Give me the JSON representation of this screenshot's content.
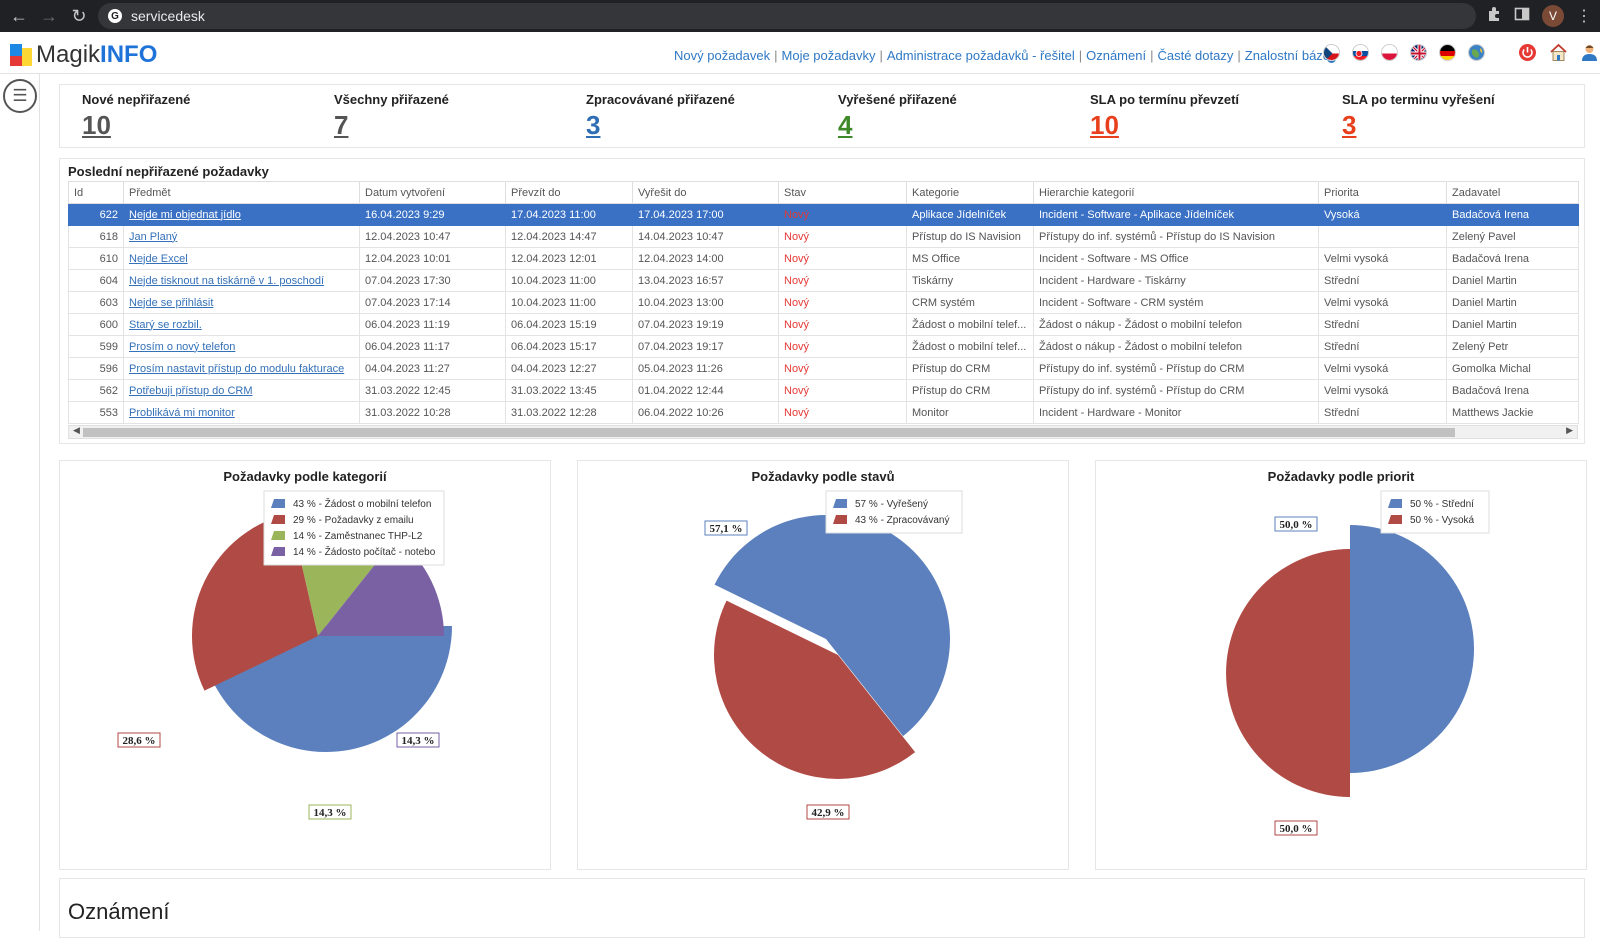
{
  "browser": {
    "url": "servicedesk",
    "profile_initial": "V"
  },
  "app": {
    "logo_prefix": "Magik",
    "logo_suffix": "INFO",
    "nav": [
      "Nový požadavek",
      "Moje požadavky",
      "Administrace požadavků - řešitel",
      "Oznámení",
      "Časté dotazy",
      "Znalostní báze"
    ],
    "languages": [
      "cs",
      "sk",
      "pl",
      "en",
      "de",
      "other"
    ],
    "active_language": "cs"
  },
  "kpis": [
    {
      "title": "Nové nepřiřazené",
      "value": "10",
      "color": "#555555"
    },
    {
      "title": "Všechny přiřazené",
      "value": "7",
      "color": "#555555"
    },
    {
      "title": "Zpracovávané přiřazené",
      "value": "3",
      "color": "#2f6db5"
    },
    {
      "title": "Vyřešené přiřazené",
      "value": "4",
      "color": "#3e8a2b"
    },
    {
      "title": "SLA po termínu převzetí",
      "value": "10",
      "color": "#e8401c"
    },
    {
      "title": "SLA po terminu vyřešení",
      "value": "3",
      "color": "#e8401c"
    }
  ],
  "requests_table": {
    "title": "Poslední nepřiřazené požadavky",
    "columns": [
      "Id",
      "Předmět",
      "Datum vytvoření",
      "Převzít do",
      "Vyřešit do",
      "Stav",
      "Kategorie",
      "Hierarchie kategorií",
      "Priorita",
      "Zadavatel"
    ],
    "rows": [
      [
        "622",
        "Nejde mi objednat jídlo",
        "16.04.2023 9:29",
        "17.04.2023 11:00",
        "17.04.2023 17:00",
        "Nový",
        "Aplikace Jídelníček",
        "Incident - Software - Aplikace Jídelníček",
        "Vysoká",
        "Badačová Irena"
      ],
      [
        "618",
        "Jan Planý",
        "12.04.2023 10:47",
        "12.04.2023 14:47",
        "14.04.2023 10:47",
        "Nový",
        "Přístup do IS Navision",
        "Přístupy do inf. systémů - Přístup do IS Navision",
        "",
        "Zelený Pavel"
      ],
      [
        "610",
        "Nejde Excel",
        "12.04.2023 10:01",
        "12.04.2023 12:01",
        "12.04.2023 14:00",
        "Nový",
        "MS Office",
        "Incident - Software - MS Office",
        "Velmi vysoká",
        "Badačová Irena"
      ],
      [
        "604",
        "Nejde tisknout na tiskárně v 1. poschodí",
        "07.04.2023 17:30",
        "10.04.2023 11:00",
        "13.04.2023 16:57",
        "Nový",
        "Tiskárny",
        "Incident - Hardware - Tiskárny",
        "Střední",
        "Daniel Martin"
      ],
      [
        "603",
        "Nejde se přihlásit",
        "07.04.2023 17:14",
        "10.04.2023 11:00",
        "10.04.2023 13:00",
        "Nový",
        "CRM systém",
        "Incident - Software - CRM systém",
        "Velmi vysoká",
        "Daniel Martin"
      ],
      [
        "600",
        "Starý se rozbil.",
        "06.04.2023 11:19",
        "06.04.2023 15:19",
        "07.04.2023 19:19",
        "Nový",
        "Žádost o mobilní telef...",
        "Žádost o nákup - Žádost o mobilní telefon",
        "Střední",
        "Daniel Martin"
      ],
      [
        "599",
        "Prosím o nový telefon",
        "06.04.2023 11:17",
        "06.04.2023 15:17",
        "07.04.2023 19:17",
        "Nový",
        "Žádost o mobilní telef...",
        "Žádost o nákup - Žádost o mobilní telefon",
        "Střední",
        "Zelený Petr"
      ],
      [
        "596",
        "Prosím nastavit přístup do modulu fakturace",
        "04.04.2023 11:27",
        "04.04.2023 12:27",
        "05.04.2023 11:26",
        "Nový",
        "Přístup do CRM",
        "Přístupy do inf. systémů - Přístup do CRM",
        "Velmi vysoká",
        "Gomolka Michal"
      ],
      [
        "562",
        "Potřebuji přístup do CRM",
        "31.03.2022 12:45",
        "31.03.2022 13:45",
        "01.04.2022 12:44",
        "Nový",
        "Přístup do CRM",
        "Přístupy do inf. systémů - Přístup do CRM",
        "Velmi vysoká",
        "Badačová Irena"
      ],
      [
        "553",
        "Problikává mi monitor",
        "31.03.2022 10:28",
        "31.03.2022 12:28",
        "06.04.2022 10:26",
        "Nový",
        "Monitor",
        "Incident - Hardware - Monitor",
        "Střední",
        "Matthews Jackie"
      ]
    ],
    "selected_row": 0
  },
  "chart_data": [
    {
      "type": "pie",
      "title": "Požadavky podle kategorií",
      "legend": [
        "43 % - Žádost o mobilní telefon",
        "29 % - Požadavky z emailu",
        "14 % - Zaměstnanec THP-L2",
        "14 % - Žádosto počítač - notebo"
      ],
      "values": [
        42.9,
        28.6,
        14.3,
        14.3
      ],
      "data_labels": [
        "",
        "28,6 %",
        "14,3 %",
        "14,3 %"
      ],
      "colors": [
        "#5b80bd",
        "#b04a45",
        "#9ab55a",
        "#7a61a3"
      ],
      "legend_placement": "top-right"
    },
    {
      "type": "pie",
      "title": "Požadavky podle stavů",
      "legend": [
        "57 % - Vyřešený",
        "43 % - Zpracovávaný"
      ],
      "values": [
        57.1,
        42.9
      ],
      "data_labels": [
        "57,1 %",
        "42,9 %"
      ],
      "colors": [
        "#5b80bd",
        "#b04a45"
      ],
      "legend_placement": "top-right"
    },
    {
      "type": "pie",
      "title": "Požadavky podle priorit",
      "legend": [
        "50 % - Střední",
        "50 % - Vysoká"
      ],
      "values": [
        50.0,
        50.0
      ],
      "data_labels": [
        "50,0 %",
        "50,0 %"
      ],
      "colors": [
        "#5b80bd",
        "#b04a45"
      ],
      "legend_placement": "top-right"
    }
  ],
  "notices": {
    "title": "Oznámení"
  }
}
